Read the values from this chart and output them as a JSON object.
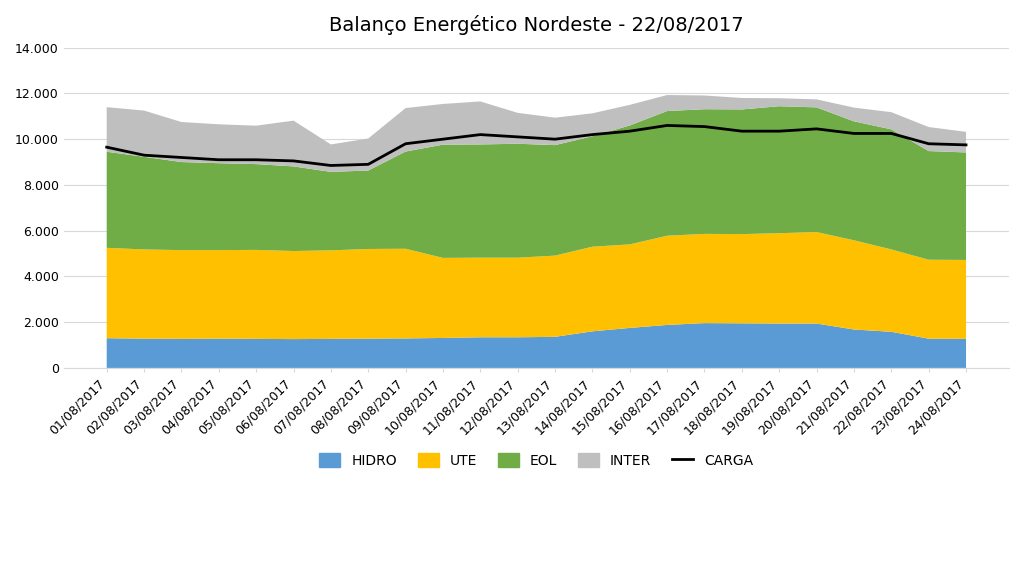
{
  "title": "Balanço Energético Nordeste - 22/08/2017",
  "dates": [
    "01/08/2017",
    "02/08/2017",
    "03/08/2017",
    "04/08/2017",
    "05/08/2017",
    "06/08/2017",
    "07/08/2017",
    "08/08/2017",
    "09/08/2017",
    "10/08/2017",
    "11/08/2017",
    "12/08/2017",
    "13/08/2017",
    "14/08/2017",
    "15/08/2017",
    "16/08/2017",
    "17/08/2017",
    "18/08/2017",
    "19/08/2017",
    "20/08/2017",
    "21/08/2017",
    "22/08/2017",
    "23/08/2017",
    "24/08/2017"
  ],
  "hidro": [
    1300,
    1280,
    1270,
    1280,
    1270,
    1260,
    1270,
    1280,
    1290,
    1310,
    1340,
    1340,
    1360,
    1600,
    1750,
    1880,
    1960,
    1950,
    1940,
    1940,
    1680,
    1580,
    1280,
    1270
  ],
  "ute": [
    3950,
    3900,
    3880,
    3870,
    3890,
    3850,
    3870,
    3920,
    3920,
    3500,
    3480,
    3480,
    3550,
    3700,
    3650,
    3900,
    3900,
    3900,
    3950,
    4000,
    3900,
    3600,
    3450,
    3450
  ],
  "eol": [
    4200,
    4050,
    3850,
    3800,
    3750,
    3700,
    3430,
    3430,
    4250,
    4950,
    4950,
    4980,
    4830,
    4830,
    5200,
    5450,
    5450,
    5450,
    5550,
    5450,
    5200,
    5250,
    4750,
    4700
  ],
  "inter": [
    1950,
    2020,
    1750,
    1700,
    1680,
    2000,
    1200,
    1400,
    1900,
    1780,
    1880,
    1350,
    1200,
    1000,
    900,
    700,
    600,
    500,
    350,
    350,
    600,
    750,
    1050,
    900
  ],
  "carga": [
    9650,
    9300,
    9200,
    9100,
    9100,
    9050,
    8850,
    8900,
    9800,
    10000,
    10200,
    10100,
    10000,
    10200,
    10350,
    10600,
    10550,
    10350,
    10350,
    10450,
    10250,
    10250,
    9800,
    9750
  ],
  "hidro_color": "#5b9bd5",
  "ute_color": "#ffc000",
  "eol_color": "#70ad47",
  "inter_color": "#bfbfbf",
  "carga_color": "#000000",
  "ylim": [
    0,
    14000
  ],
  "yticks": [
    0,
    2000,
    4000,
    6000,
    8000,
    10000,
    12000,
    14000
  ],
  "ytick_labels": [
    "0",
    "2.000",
    "4.000",
    "6.000",
    "8.000",
    "10.000",
    "12.000",
    "14.000"
  ],
  "background_color": "#ffffff",
  "title_fontsize": 14,
  "tick_fontsize": 9,
  "legend_fontsize": 10
}
